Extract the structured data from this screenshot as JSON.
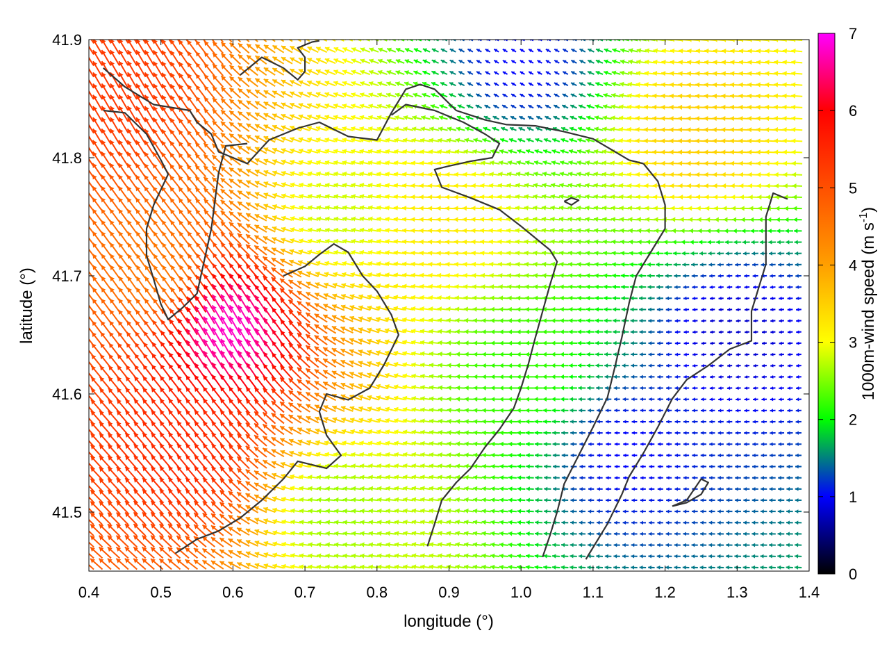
{
  "chart_data": {
    "type": "vector-field",
    "title": "",
    "xlabel": "longitude (°)",
    "ylabel": "latitude (°)",
    "xlim": [
      0.4,
      1.4
    ],
    "ylim": [
      41.45,
      41.9
    ],
    "xticks": [
      "0.4",
      "0.5",
      "0.6",
      "0.7",
      "0.8",
      "0.9",
      "1.0",
      "1.1",
      "1.2",
      "1.3",
      "1.4"
    ],
    "yticks": [
      "41.5",
      "41.6",
      "41.7",
      "41.8",
      "41.9"
    ],
    "colorbar": {
      "label": "1000m-wind speed (m s",
      "label_sup": "-1",
      "label_end": ")",
      "range": [
        0,
        7
      ],
      "ticks": [
        "0",
        "1",
        "2",
        "3",
        "4",
        "5",
        "6",
        "7"
      ],
      "colormap": [
        "#000000",
        "#0000ff",
        "#00ff00",
        "#ffff00",
        "#ff8000",
        "#ff0000",
        "#ff00ff"
      ]
    },
    "grid": false,
    "legend": "none",
    "contour_color": "#333333",
    "sample_vectors": [
      {
        "lon": 0.45,
        "lat": 41.85,
        "speed": 5.3,
        "dir_to_deg": 120
      },
      {
        "lon": 0.5,
        "lat": 41.7,
        "speed": 4.5,
        "dir_to_deg": 125
      },
      {
        "lon": 0.6,
        "lat": 41.65,
        "speed": 6.8,
        "dir_to_deg": 120
      },
      {
        "lon": 0.55,
        "lat": 41.55,
        "speed": 5.5,
        "dir_to_deg": 130
      },
      {
        "lon": 0.75,
        "lat": 41.75,
        "speed": 2.8,
        "dir_to_deg": 170
      },
      {
        "lon": 0.9,
        "lat": 41.75,
        "speed": 3.2,
        "dir_to_deg": 178
      },
      {
        "lon": 1.0,
        "lat": 41.62,
        "speed": 2.2,
        "dir_to_deg": 180
      },
      {
        "lon": 1.15,
        "lat": 41.55,
        "speed": 1.0,
        "dir_to_deg": 180
      },
      {
        "lon": 1.3,
        "lat": 41.65,
        "speed": 0.8,
        "dir_to_deg": 185
      },
      {
        "lon": 1.25,
        "lat": 41.82,
        "speed": 3.5,
        "dir_to_deg": 178
      },
      {
        "lon": 1.0,
        "lat": 41.88,
        "speed": 1.0,
        "dir_to_deg": 150
      },
      {
        "lon": 0.75,
        "lat": 41.5,
        "speed": 2.6,
        "dir_to_deg": 175
      }
    ],
    "contours": [
      [
        [
          0.42,
          41.876
        ],
        [
          0.45,
          41.86
        ],
        [
          0.49,
          41.845
        ],
        [
          0.54,
          41.84
        ],
        [
          0.55,
          41.83
        ],
        [
          0.57,
          41.82
        ],
        [
          0.58,
          41.805
        ],
        [
          0.62,
          41.795
        ],
        [
          0.65,
          41.815
        ],
        [
          0.69,
          41.825
        ],
        [
          0.72,
          41.83
        ],
        [
          0.76,
          41.818
        ],
        [
          0.8,
          41.815
        ],
        [
          0.82,
          41.838
        ],
        [
          0.84,
          41.858
        ],
        [
          0.86,
          41.862
        ],
        [
          0.88,
          41.858
        ],
        [
          0.91,
          41.84
        ],
        [
          0.95,
          41.832
        ],
        [
          0.98,
          41.828
        ],
        [
          1.02,
          41.827
        ],
        [
          1.06,
          41.822
        ],
        [
          1.1,
          41.816
        ],
        [
          1.15,
          41.798
        ],
        [
          1.17,
          41.795
        ]
      ],
      [
        [
          0.42,
          41.84
        ],
        [
          0.45,
          41.838
        ],
        [
          0.48,
          41.82
        ],
        [
          0.5,
          41.798
        ],
        [
          0.51,
          41.786
        ],
        [
          0.49,
          41.76
        ],
        [
          0.48,
          41.74
        ],
        [
          0.48,
          41.717
        ],
        [
          0.49,
          41.697
        ],
        [
          0.5,
          41.676
        ],
        [
          0.51,
          41.663
        ],
        [
          0.53,
          41.673
        ],
        [
          0.55,
          41.685
        ],
        [
          0.57,
          41.74
        ],
        [
          0.58,
          41.787
        ],
        [
          0.59,
          41.81
        ],
        [
          0.62,
          41.812
        ]
      ],
      [
        [
          0.61,
          41.87
        ],
        [
          0.63,
          41.88
        ],
        [
          0.64,
          41.885
        ],
        [
          0.67,
          41.876
        ],
        [
          0.69,
          41.866
        ],
        [
          0.7,
          41.873
        ],
        [
          0.7,
          41.885
        ],
        [
          0.69,
          41.893
        ],
        [
          0.71,
          41.898
        ],
        [
          0.72,
          41.899
        ]
      ],
      [
        [
          0.67,
          41.7
        ],
        [
          0.7,
          41.708
        ],
        [
          0.72,
          41.718
        ],
        [
          0.74,
          41.727
        ],
        [
          0.76,
          41.72
        ],
        [
          0.78,
          41.7
        ],
        [
          0.8,
          41.687
        ],
        [
          0.82,
          41.667
        ],
        [
          0.83,
          41.65
        ],
        [
          0.81,
          41.625
        ],
        [
          0.79,
          41.605
        ],
        [
          0.76,
          41.595
        ],
        [
          0.73,
          41.6
        ],
        [
          0.72,
          41.585
        ],
        [
          0.73,
          41.565
        ],
        [
          0.75,
          41.548
        ],
        [
          0.73,
          41.537
        ],
        [
          0.69,
          41.543
        ],
        [
          0.67,
          41.528
        ],
        [
          0.64,
          41.51
        ],
        [
          0.61,
          41.495
        ],
        [
          0.58,
          41.484
        ],
        [
          0.55,
          41.477
        ],
        [
          0.52,
          41.465
        ]
      ],
      [
        [
          0.82,
          41.836
        ],
        [
          0.84,
          41.845
        ],
        [
          0.88,
          41.84
        ],
        [
          0.92,
          41.83
        ],
        [
          0.95,
          41.82
        ],
        [
          0.97,
          41.812
        ],
        [
          0.96,
          41.8
        ],
        [
          0.93,
          41.797
        ],
        [
          0.9,
          41.793
        ],
        [
          0.88,
          41.79
        ],
        [
          0.89,
          41.775
        ],
        [
          0.93,
          41.766
        ],
        [
          0.97,
          41.756
        ],
        [
          1.0,
          41.742
        ],
        [
          1.02,
          41.732
        ],
        [
          1.04,
          41.722
        ],
        [
          1.05,
          41.712
        ],
        [
          1.04,
          41.692
        ],
        [
          1.03,
          41.67
        ],
        [
          1.02,
          41.648
        ],
        [
          1.01,
          41.625
        ],
        [
          1.0,
          41.605
        ],
        [
          0.99,
          41.588
        ],
        [
          0.97,
          41.57
        ],
        [
          0.95,
          41.555
        ],
        [
          0.93,
          41.537
        ],
        [
          0.91,
          41.525
        ],
        [
          0.89,
          41.51
        ],
        [
          0.88,
          41.49
        ],
        [
          0.87,
          41.471
        ]
      ],
      [
        [
          1.17,
          41.795
        ],
        [
          1.19,
          41.78
        ],
        [
          1.2,
          41.76
        ],
        [
          1.2,
          41.74
        ],
        [
          1.18,
          41.72
        ],
        [
          1.16,
          41.7
        ],
        [
          1.15,
          41.677
        ],
        [
          1.14,
          41.648
        ],
        [
          1.13,
          41.622
        ],
        [
          1.12,
          41.597
        ],
        [
          1.1,
          41.572
        ],
        [
          1.08,
          41.548
        ],
        [
          1.06,
          41.524
        ],
        [
          1.05,
          41.5
        ],
        [
          1.04,
          41.48
        ],
        [
          1.03,
          41.462
        ]
      ],
      [
        [
          1.37,
          41.765
        ],
        [
          1.35,
          41.77
        ],
        [
          1.34,
          41.75
        ],
        [
          1.34,
          41.73
        ],
        [
          1.34,
          41.71
        ],
        [
          1.33,
          41.69
        ],
        [
          1.32,
          41.67
        ],
        [
          1.32,
          41.645
        ],
        [
          1.29,
          41.638
        ],
        [
          1.26,
          41.624
        ],
        [
          1.23,
          41.612
        ],
        [
          1.21,
          41.596
        ],
        [
          1.19,
          41.572
        ],
        [
          1.17,
          41.55
        ],
        [
          1.15,
          41.53
        ],
        [
          1.14,
          41.515
        ],
        [
          1.12,
          41.49
        ],
        [
          1.1,
          41.47
        ],
        [
          1.09,
          41.46
        ]
      ],
      [
        [
          1.21,
          41.505
        ],
        [
          1.23,
          41.508
        ],
        [
          1.25,
          41.515
        ],
        [
          1.26,
          41.525
        ],
        [
          1.25,
          41.528
        ],
        [
          1.23,
          41.51
        ],
        [
          1.21,
          41.505
        ]
      ],
      [
        [
          1.06,
          41.763
        ],
        [
          1.07,
          41.76
        ],
        [
          1.08,
          41.764
        ],
        [
          1.07,
          41.766
        ],
        [
          1.06,
          41.763
        ]
      ]
    ]
  }
}
